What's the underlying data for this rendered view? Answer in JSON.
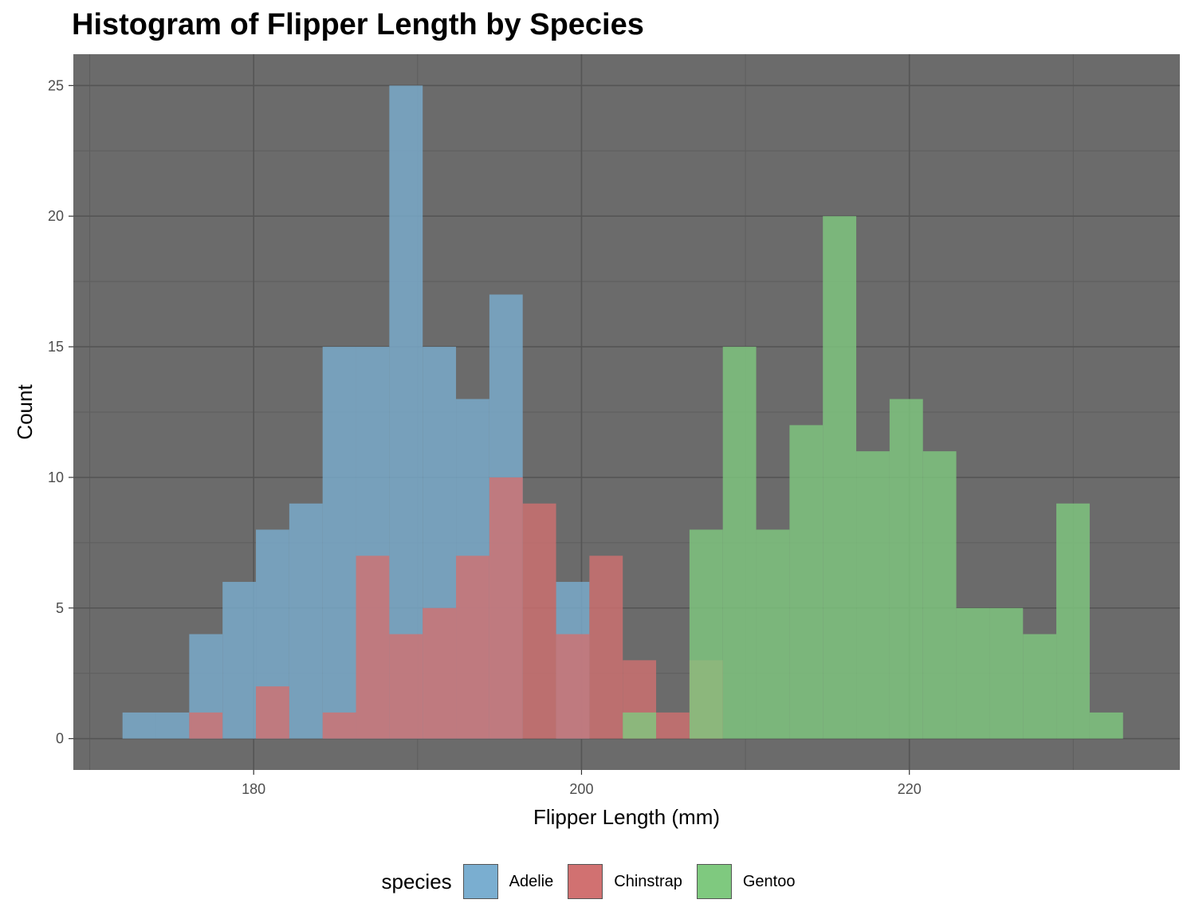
{
  "chart_data": {
    "type": "histogram",
    "title": "Histogram of Flipper Length by Species",
    "xlabel": "Flipper Length (mm)",
    "ylabel": "Count",
    "xlim": [
      169,
      236.5
    ],
    "ylim": [
      -1.2,
      26.2
    ],
    "x_ticks": [
      180,
      200,
      220
    ],
    "x_tick_labels": [
      "180",
      "200",
      "220"
    ],
    "y_ticks": [
      0,
      5,
      10,
      15,
      20,
      25
    ],
    "y_tick_labels": [
      "0",
      "5",
      "10",
      "15",
      "20",
      "25"
    ],
    "grid": true,
    "panel_background": "#6b6b6b",
    "bin_start": 172.0,
    "bin_width": 2.0345,
    "legend_title": "species",
    "legend_position": "bottom",
    "series": [
      {
        "name": "Adelie",
        "color": "#7aaed0",
        "counts": [
          1,
          1,
          4,
          6,
          8,
          9,
          15,
          15,
          25,
          15,
          13,
          17,
          0,
          6,
          0,
          0,
          0,
          0,
          0,
          0,
          0,
          0,
          0,
          0,
          0,
          0,
          0,
          0,
          0,
          0,
          0
        ]
      },
      {
        "name": "Chinstrap",
        "color": "#d17171",
        "counts": [
          0,
          0,
          1,
          0,
          2,
          0,
          1,
          7,
          4,
          5,
          7,
          10,
          9,
          4,
          7,
          3,
          1,
          3,
          0,
          0,
          0,
          0,
          0,
          0,
          0,
          0,
          0,
          0,
          0,
          0,
          0
        ]
      },
      {
        "name": "Gentoo",
        "color": "#7fc97f",
        "counts": [
          0,
          0,
          0,
          0,
          0,
          0,
          0,
          0,
          0,
          0,
          0,
          0,
          0,
          0,
          0,
          1,
          0,
          8,
          15,
          8,
          12,
          20,
          11,
          13,
          11,
          5,
          5,
          4,
          9,
          1,
          0
        ]
      }
    ]
  }
}
